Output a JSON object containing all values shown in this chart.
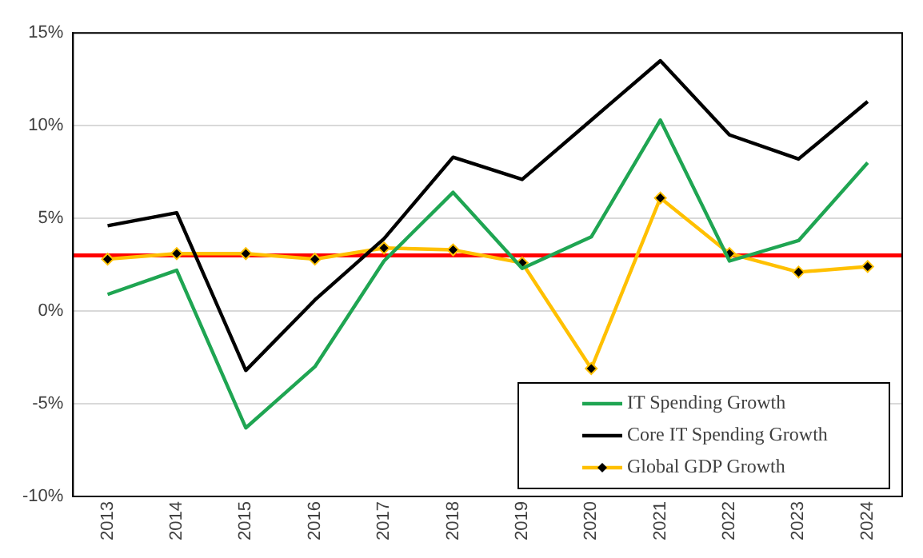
{
  "chart_data": {
    "type": "line",
    "categories": [
      "2013",
      "2014",
      "2015",
      "2016",
      "2017",
      "2018",
      "2019",
      "2020",
      "2021",
      "2022",
      "2023",
      "2024"
    ],
    "series": [
      {
        "name": "IT Spending Growth",
        "color": "#1fa552",
        "marker": "none",
        "values": [
          0.9,
          2.2,
          -6.3,
          -3.0,
          2.7,
          6.4,
          2.3,
          4.0,
          10.3,
          2.7,
          3.8,
          8.0
        ]
      },
      {
        "name": "Core IT Spending Growth",
        "color": "#000000",
        "marker": "none",
        "values": [
          4.6,
          5.3,
          -3.2,
          0.6,
          3.9,
          8.3,
          7.1,
          10.3,
          13.5,
          9.5,
          8.2,
          11.3
        ]
      },
      {
        "name": "Global GDP Growth",
        "color": "#ffc000",
        "marker": "diamond",
        "values": [
          2.8,
          3.1,
          3.1,
          2.8,
          3.4,
          3.3,
          2.6,
          -3.1,
          6.1,
          3.1,
          2.1,
          2.4
        ]
      }
    ],
    "ylim": [
      -10,
      15
    ],
    "yticks": [
      {
        "value": -10,
        "label": "-10%"
      },
      {
        "value": -5,
        "label": "-5%"
      },
      {
        "value": 0,
        "label": "0%"
      },
      {
        "value": 5,
        "label": "5%"
      },
      {
        "value": 10,
        "label": "10%"
      },
      {
        "value": 15,
        "label": "15%"
      }
    ],
    "ref_lines": [
      {
        "axis": "y",
        "value": 3,
        "label": null,
        "color": "#ff0000"
      }
    ],
    "grid": "y",
    "legend": "bottom right",
    "line_style": "solid"
  }
}
